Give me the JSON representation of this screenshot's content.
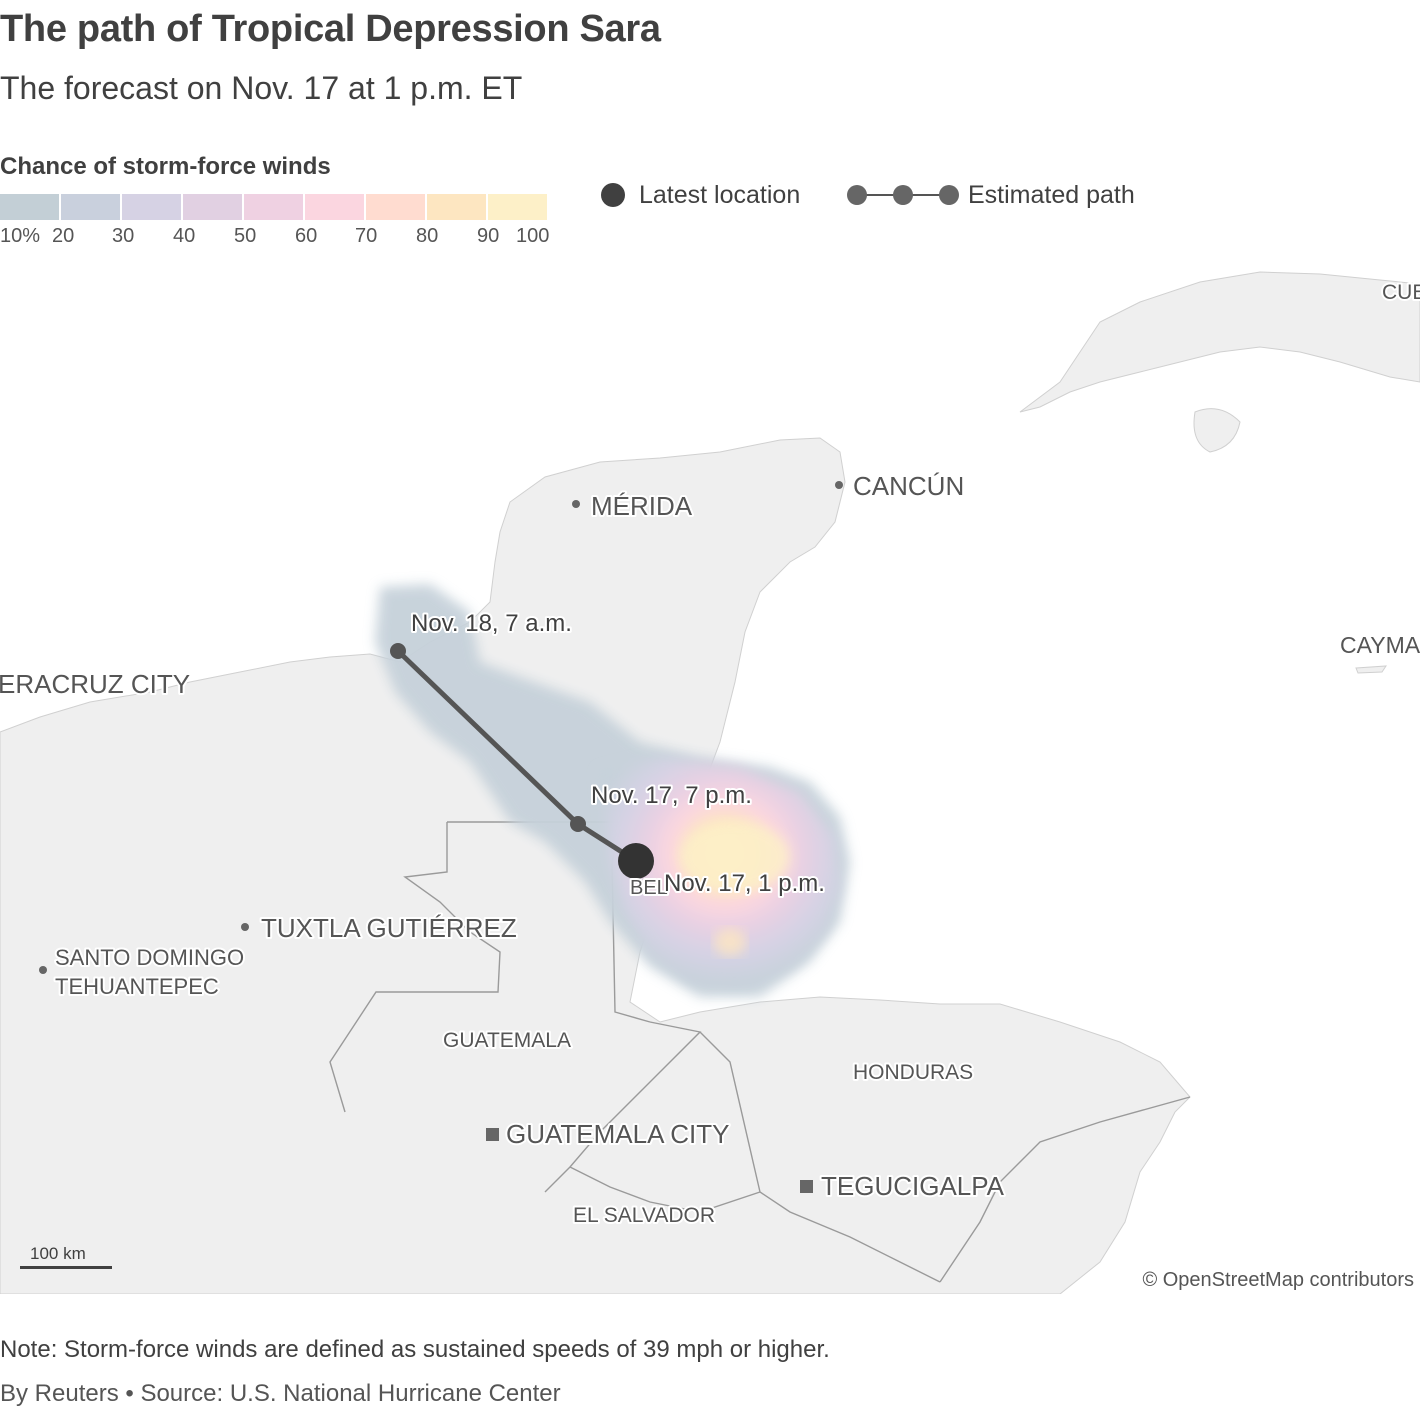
{
  "title": "The path of Tropical Depression Sara",
  "subtitle": "The forecast on Nov. 17 at 1 p.m. ET",
  "legend": {
    "title": "Chance of storm-force winds",
    "swatch_colors": [
      "#c3cfd6",
      "#c9d0dd",
      "#d6d2e4",
      "#e1d0e2",
      "#efd1e2",
      "#fbd6e0",
      "#ffdcd0",
      "#fde6c1",
      "#fdf0c8"
    ],
    "tick_labels": [
      "10%",
      "20",
      "30",
      "40",
      "50",
      "60",
      "70",
      "80",
      "90",
      "100"
    ],
    "latest_location_label": "Latest location",
    "estimated_path_label": "Estimated path"
  },
  "map": {
    "places": {
      "cuba": "CUE",
      "cancun": "CANCÚN",
      "merida": "MÉRIDA",
      "cayman": "CAYMA",
      "veracruz": "ERACRUZ CITY",
      "tuxtla": "TUXTLA GUTIÉRREZ",
      "santo_domingo_1": "SANTO DOMINGO",
      "santo_domingo_2": "TEHUANTEPEC",
      "belize": "BEL",
      "guatemala": "GUATEMALA",
      "guatemala_city": "GUATEMALA CITY",
      "honduras": "HONDURAS",
      "tegucigalpa": "TEGUCIGALPA",
      "el_salvador": "EL SALVADOR"
    },
    "track_points": [
      {
        "label": "Nov. 18, 7 a.m.",
        "type": "forecast"
      },
      {
        "label": "Nov. 17, 7 p.m.",
        "type": "forecast"
      },
      {
        "label": "Nov. 17, 1 p.m.",
        "type": "latest"
      }
    ],
    "scale_label": "100 km",
    "attribution": "© OpenStreetMap contributors"
  },
  "note": "Note: Storm-force winds are defined as sustained speeds of 39 mph or higher.",
  "source": "By Reuters • Source: U.S. National Hurricane Center",
  "colors": {
    "text": "#404040",
    "land": "#efefef",
    "water": "#ffffff",
    "track": "#555555",
    "latest_point": "#333333"
  }
}
